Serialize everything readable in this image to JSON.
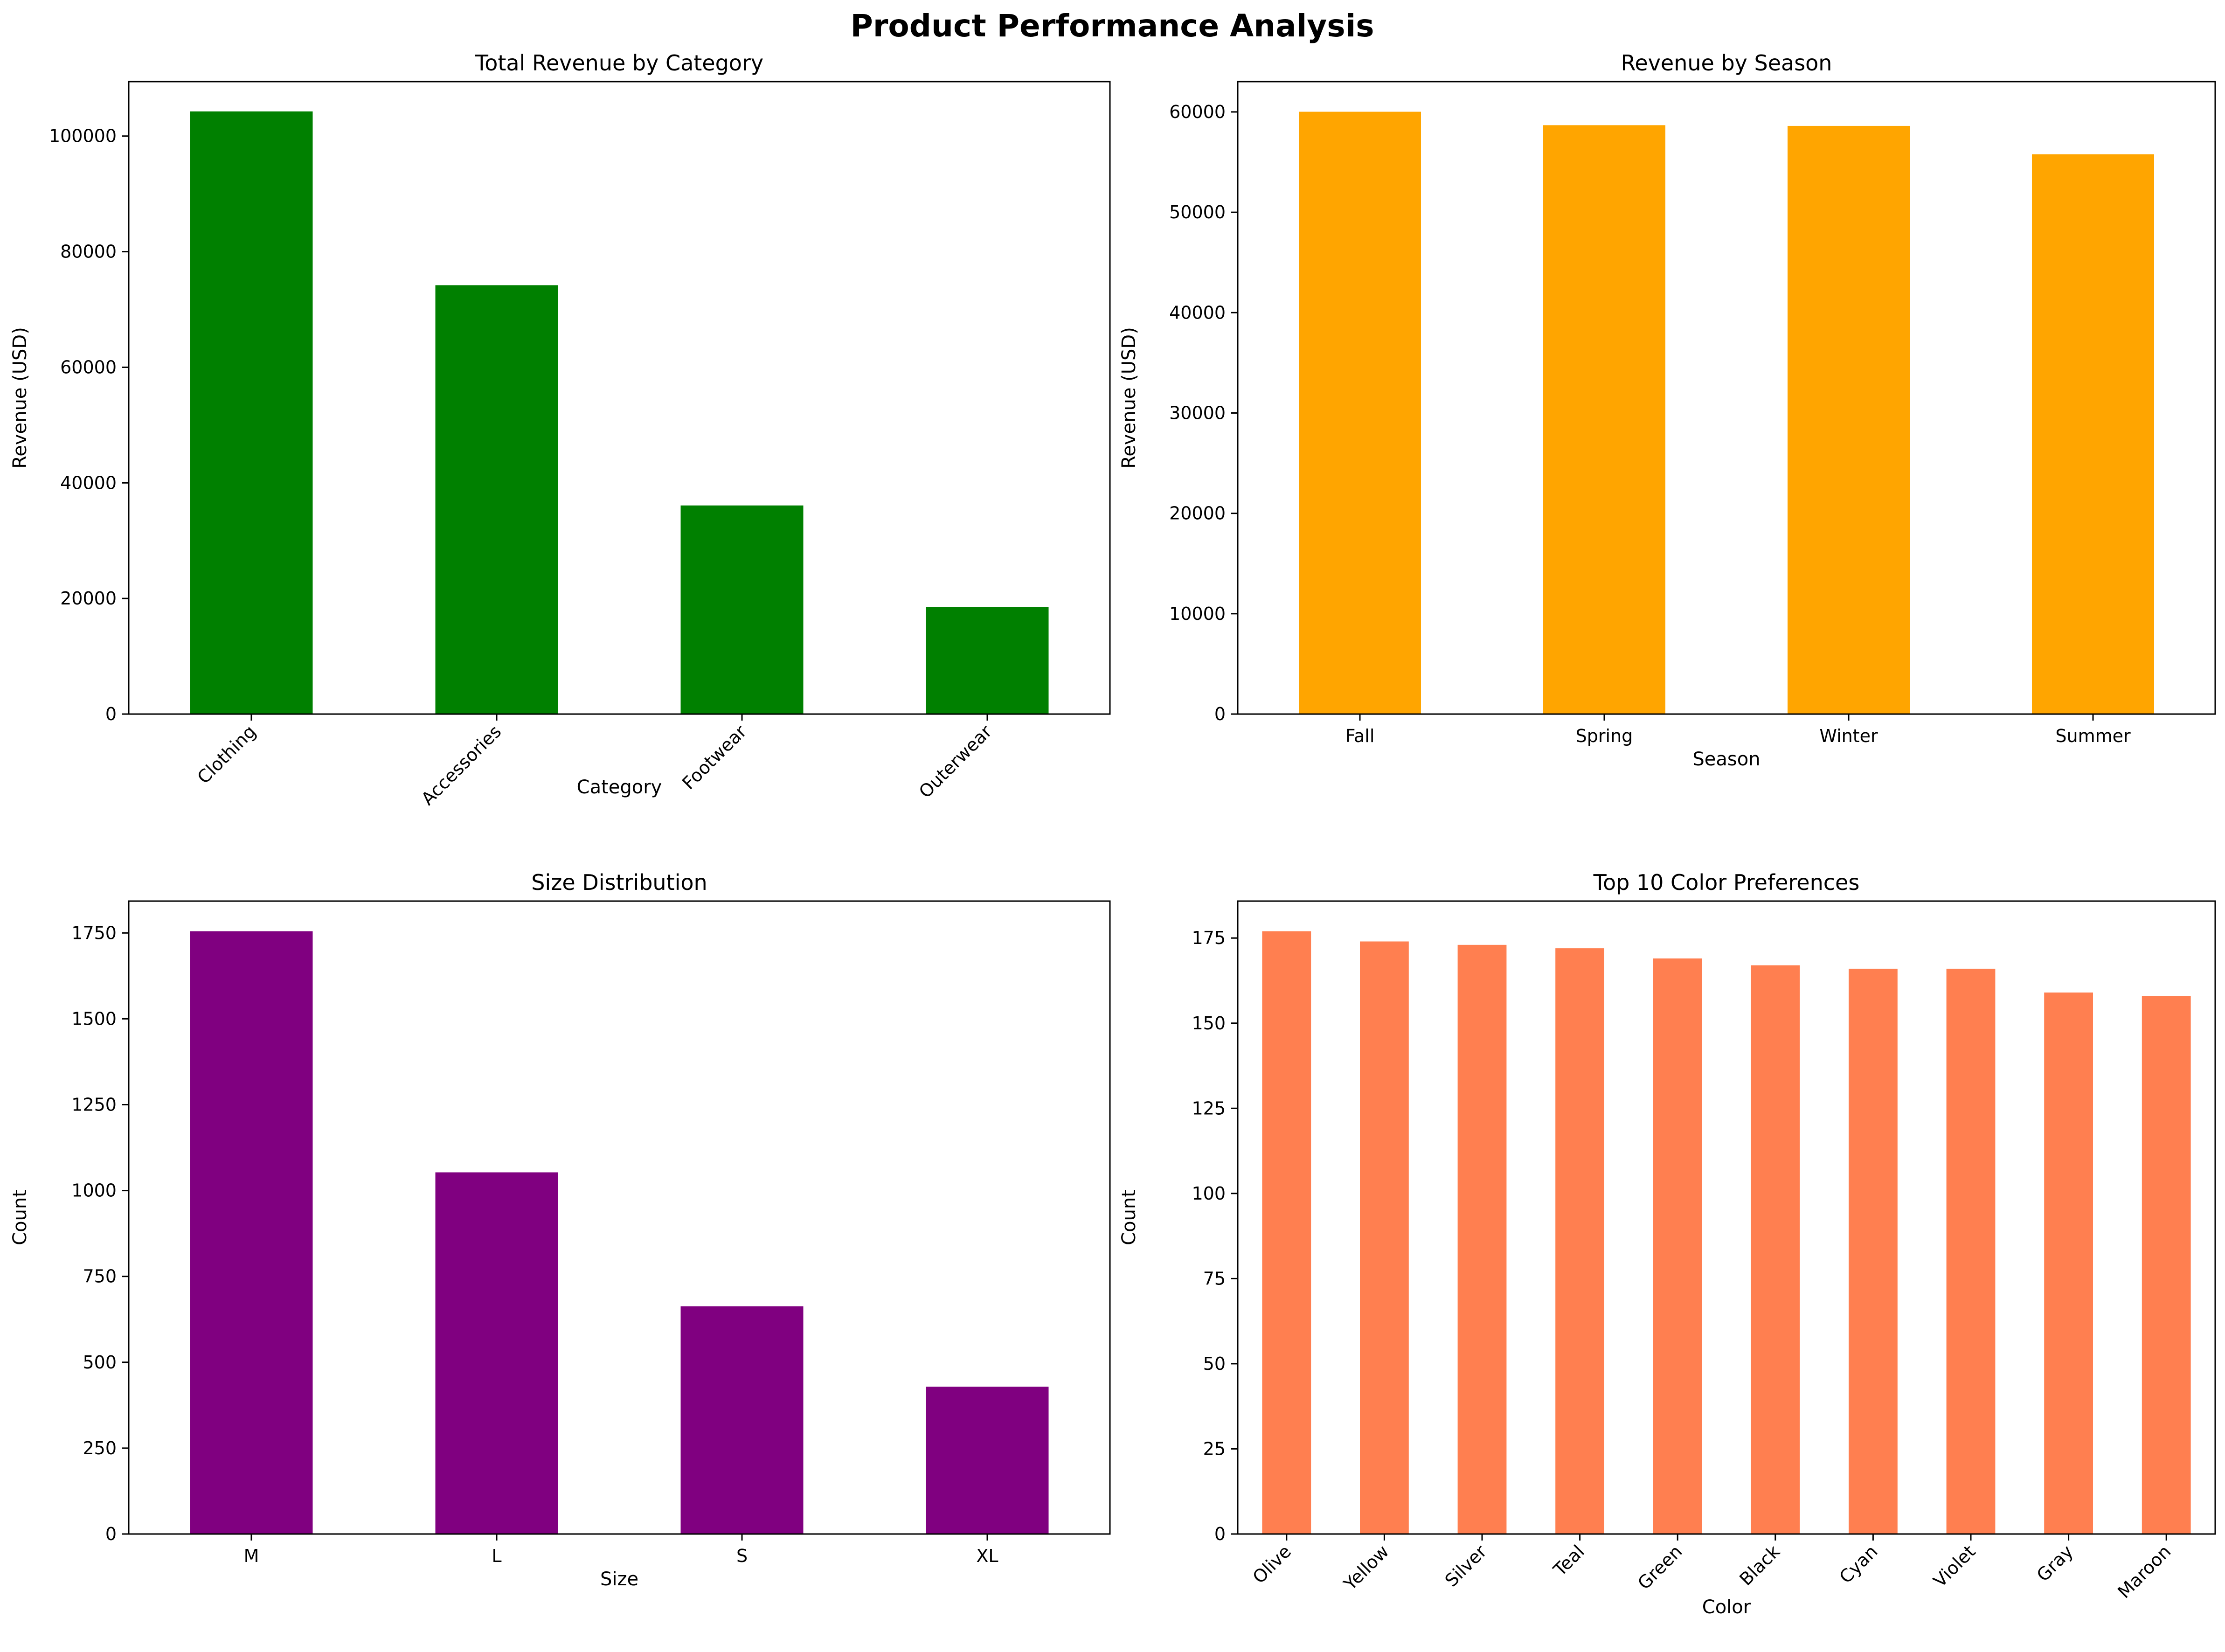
{
  "figure": {
    "title": "Product Performance Analysis"
  },
  "chart_data": [
    {
      "id": "revenue-by-category",
      "type": "bar",
      "title": "Total Revenue by Category",
      "xlabel": "Category",
      "ylabel": "Revenue (USD)",
      "categories": [
        "Clothing",
        "Accessories",
        "Footwear",
        "Outerwear"
      ],
      "values": [
        104264,
        74200,
        36093,
        18524
      ],
      "ylim": [
        0,
        109421
      ],
      "yticks": [
        0,
        20000,
        40000,
        60000,
        80000,
        100000
      ],
      "ytick_labels": [
        "0",
        "20000",
        "40000",
        "60000",
        "80000",
        "100000"
      ],
      "xtick_rotation": 45,
      "color": "#008000",
      "grid": false
    },
    {
      "id": "revenue-by-season",
      "type": "bar",
      "title": "Revenue by Season",
      "xlabel": "Season",
      "ylabel": "Revenue (USD)",
      "categories": [
        "Fall",
        "Spring",
        "Winter",
        "Summer"
      ],
      "values": [
        60018,
        58679,
        58607,
        55777
      ],
      "ylim": [
        0,
        63019
      ],
      "yticks": [
        0,
        10000,
        20000,
        30000,
        40000,
        50000,
        60000
      ],
      "ytick_labels": [
        "0",
        "10000",
        "20000",
        "30000",
        "40000",
        "50000",
        "60000"
      ],
      "xtick_rotation": 0,
      "color": "#FFA500",
      "grid": false
    },
    {
      "id": "size-distribution",
      "type": "bar",
      "title": "Size Distribution",
      "xlabel": "Size",
      "ylabel": "Count",
      "categories": [
        "M",
        "L",
        "S",
        "XL"
      ],
      "values": [
        1755,
        1053,
        663,
        429
      ],
      "ylim": [
        0,
        1842.75
      ],
      "yticks": [
        0,
        250,
        500,
        750,
        1000,
        1250,
        1500,
        1750
      ],
      "ytick_labels": [
        "0",
        "250",
        "500",
        "750",
        "1000",
        "1250",
        "1500",
        "1750"
      ],
      "xtick_rotation": 0,
      "color": "#800080",
      "grid": false
    },
    {
      "id": "top-colors",
      "type": "bar",
      "title": "Top 10 Color Preferences",
      "xlabel": "Color",
      "ylabel": "Count",
      "categories": [
        "Olive",
        "Yellow",
        "Silver",
        "Teal",
        "Green",
        "Black",
        "Cyan",
        "Violet",
        "Gray",
        "Maroon"
      ],
      "values": [
        177,
        174,
        173,
        172,
        169,
        167,
        166,
        166,
        159,
        158
      ],
      "ylim": [
        0,
        185.85
      ],
      "yticks": [
        0,
        25,
        50,
        75,
        100,
        125,
        150,
        175
      ],
      "ytick_labels": [
        "0",
        "25",
        "50",
        "75",
        "100",
        "125",
        "150",
        "175"
      ],
      "xtick_rotation": 45,
      "color": "#FF7F50",
      "grid": false
    }
  ]
}
